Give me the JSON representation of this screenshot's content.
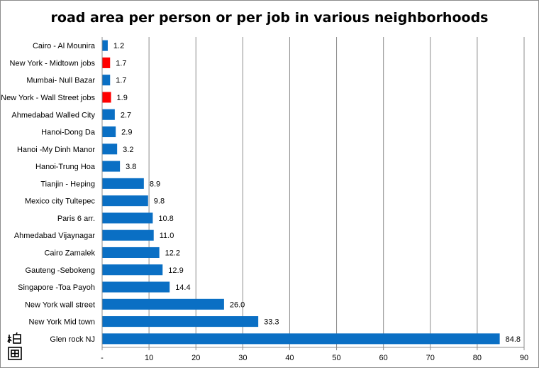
{
  "chart_data": {
    "type": "bar",
    "orientation": "horizontal",
    "title": "road area per person or per job in various neighborhoods",
    "xlabel": "",
    "ylabel": "",
    "xlim": [
      0,
      90
    ],
    "ticks": [
      0,
      10,
      20,
      30,
      40,
      50,
      60,
      70,
      80,
      90
    ],
    "tick_labels": [
      "-",
      "10",
      "20",
      "30",
      "40",
      "50",
      "60",
      "70",
      "80",
      "90"
    ],
    "grid": "vertical",
    "legend": "none",
    "value_format": "one decimal",
    "colors": {
      "default": "#0a6fc4",
      "highlight": "#ff0000"
    },
    "categories": [
      "Cairo - Al Mounira",
      "New York - Midtown jobs",
      "Mumbai- Null Bazar",
      "New York - Wall Street jobs",
      "Ahmedabad Walled City",
      "Hanoi-Dong Da",
      "Hanoi -My Dinh Manor",
      "Hanoi-Trung Hoa",
      "Tianjin - Heping",
      "Mexico city Tultepec",
      "Paris 6 arr.",
      "Ahmedabad Vijaynagar",
      "Cairo Zamalek",
      "Gauteng -Sebokeng",
      "Singapore -Toa Payoh",
      "New York wall street",
      "New York Mid town",
      "Glen rock NJ"
    ],
    "values": [
      1.2,
      1.7,
      1.7,
      1.9,
      2.7,
      2.9,
      3.2,
      3.8,
      8.9,
      9.8,
      10.8,
      11.0,
      12.2,
      12.9,
      14.4,
      26.0,
      33.3,
      84.8
    ],
    "highlighted": [
      false,
      true,
      false,
      true,
      false,
      false,
      false,
      false,
      false,
      false,
      false,
      false,
      false,
      false,
      false,
      false,
      false,
      false
    ]
  },
  "logo": {
    "icon": "seal-logo-icon",
    "color": "#000000"
  }
}
